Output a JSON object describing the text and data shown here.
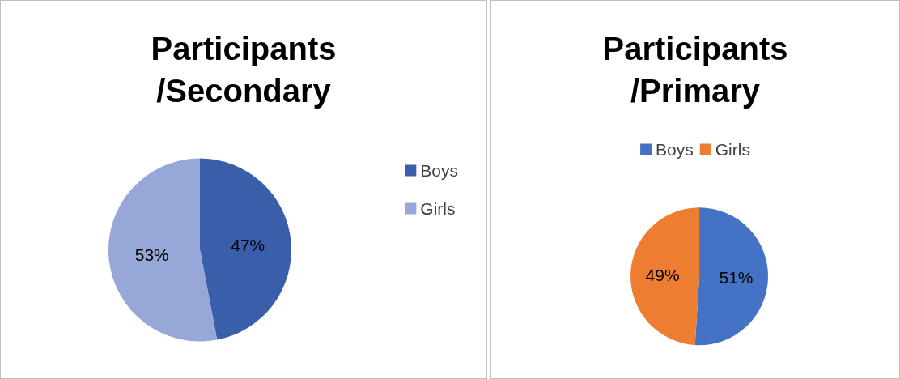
{
  "chart_data": [
    {
      "type": "pie",
      "title": "Participants\n/Secondary",
      "categories": [
        "Boys",
        "Girls"
      ],
      "values": [
        47,
        53
      ],
      "value_labels": [
        "47%",
        "53%"
      ],
      "colors": [
        "#3b5eab",
        "#97a7d8"
      ],
      "legend": "right"
    },
    {
      "type": "pie",
      "title": "Participants\n/Primary",
      "categories": [
        "Boys",
        "Girls"
      ],
      "values": [
        51,
        49
      ],
      "value_labels": [
        "51%",
        "49%"
      ],
      "colors": [
        "#4472c4",
        "#ed7d31"
      ],
      "legend": "top"
    }
  ]
}
